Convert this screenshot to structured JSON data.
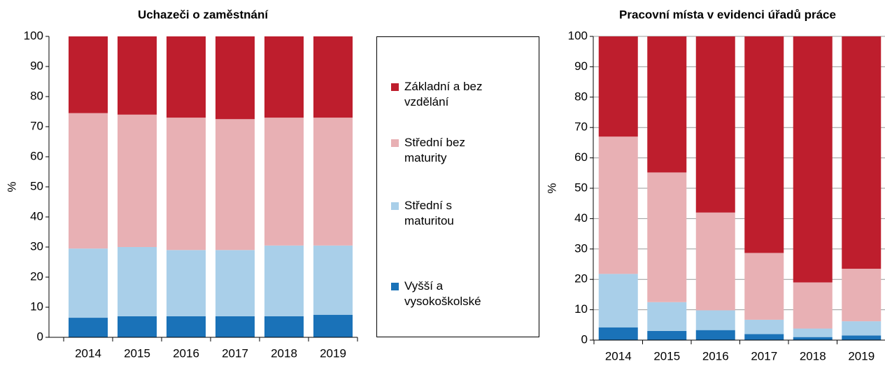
{
  "chart_data": [
    {
      "type": "bar",
      "stacked": true,
      "title": "Uchazeči o zaměstnání",
      "ylabel": "%",
      "categories": [
        "2014",
        "2015",
        "2016",
        "2017",
        "2018",
        "2019"
      ],
      "series": [
        {
          "name": "Vyšší a vysokoškolské",
          "color": "#1a72b8",
          "values": [
            6.5,
            7,
            7,
            7,
            7,
            7.5
          ]
        },
        {
          "name": "Střední s maturitou",
          "color": "#a9cfe9",
          "values": [
            23,
            23,
            22,
            22,
            23.5,
            23
          ]
        },
        {
          "name": "Střední bez maturity",
          "color": "#e8b0b4",
          "values": [
            45,
            44,
            44,
            43.5,
            42.5,
            42.5
          ]
        },
        {
          "name": "Základní a bez vzdělání",
          "color": "#be1e2d",
          "values": [
            25.5,
            26,
            27,
            27.5,
            27,
            27
          ]
        }
      ],
      "ylim": [
        0,
        100
      ],
      "yticks": [
        0,
        10,
        20,
        30,
        40,
        50,
        60,
        70,
        80,
        90,
        100
      ],
      "grid": false
    },
    {
      "type": "bar",
      "stacked": true,
      "title": "Pracovní místa v evidenci úřadů práce",
      "ylabel": "%",
      "categories": [
        "2014",
        "2015",
        "2016",
        "2017",
        "2018",
        "2019"
      ],
      "series": [
        {
          "color": "#1a72b8",
          "values": [
            4.2,
            3,
            3.3,
            2,
            1,
            1.5
          ]
        },
        {
          "color": "#a9cfe9",
          "values": [
            17.6,
            9.5,
            6.5,
            4.7,
            2.8,
            4.7
          ]
        },
        {
          "color": "#e8b0b4",
          "values": [
            45.2,
            42.7,
            32.2,
            22,
            15.2,
            17.3
          ]
        },
        {
          "color": "#be1e2d",
          "values": [
            33,
            44.8,
            58,
            71.3,
            81,
            76.5
          ]
        }
      ],
      "ylim": [
        0,
        100
      ],
      "yticks": [
        0,
        10,
        20,
        30,
        40,
        50,
        60,
        70,
        80,
        90,
        100
      ],
      "grid": true
    }
  ]
}
